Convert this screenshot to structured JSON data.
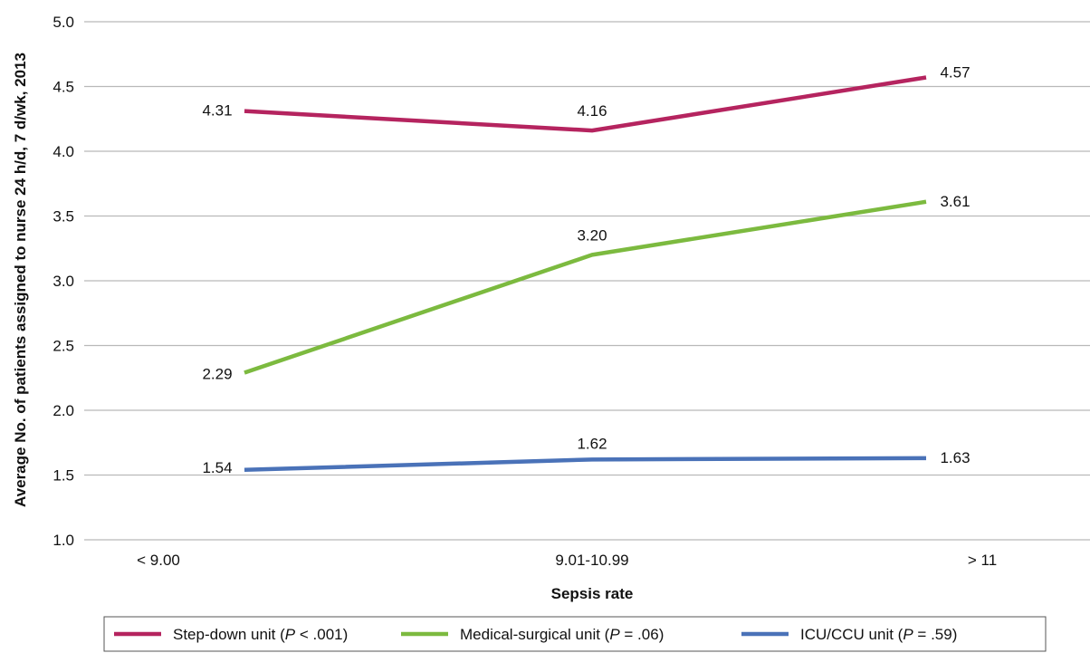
{
  "chart_data": {
    "type": "line",
    "title": "",
    "xlabel": "Sepsis rate",
    "ylabel": "Average No. of patients assigned to nurse 24 h/d, 7 d/wk, 2013",
    "categories": [
      "< 9.00",
      "9.01-10.99",
      "> 11"
    ],
    "ylim": [
      1.0,
      5.0
    ],
    "yticks": [
      "1.0",
      "1.5",
      "2.0",
      "2.5",
      "3.0",
      "3.5",
      "4.0",
      "4.5",
      "5.0"
    ],
    "grid": true,
    "legend_position": "bottom",
    "series": [
      {
        "name": "Step-down unit (P < .001)",
        "legend_prefix": "Step-down unit (",
        "legend_p": "P",
        "legend_suffix": " < .001)",
        "color": "#b5245f",
        "values": [
          4.31,
          4.16,
          4.57
        ],
        "labels": [
          "4.31",
          "4.16",
          "4.57"
        ]
      },
      {
        "name": "Medical-surgical unit (P = .06)",
        "legend_prefix": "Medical-surgical unit (",
        "legend_p": "P",
        "legend_suffix": " = .06)",
        "color": "#7cba3f",
        "values": [
          2.29,
          3.2,
          3.61
        ],
        "labels": [
          "2.29",
          "3.20",
          "3.61"
        ]
      },
      {
        "name": "ICU/CCU unit (P = .59)",
        "legend_prefix": "ICU/CCU unit (",
        "legend_p": "P",
        "legend_suffix": " = .59)",
        "color": "#4a72b8",
        "values": [
          1.54,
          1.62,
          1.63
        ],
        "labels": [
          "1.54",
          "1.62",
          "1.63"
        ]
      }
    ]
  }
}
